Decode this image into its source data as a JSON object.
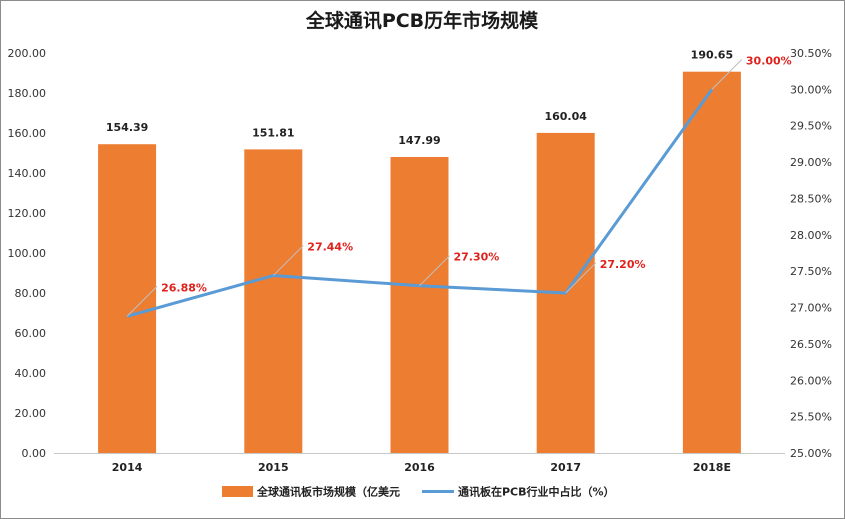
{
  "chart_data": {
    "type": "bar",
    "title": "全球通讯PCB历年市场规模",
    "categories": [
      "2014",
      "2015",
      "2016",
      "2017",
      "2018E"
    ],
    "series": [
      {
        "name": "全球通讯板市场规模（亿美元",
        "type": "bar",
        "axis": "left",
        "color": "#ed7d31",
        "values": [
          154.39,
          151.81,
          147.99,
          160.04,
          190.65
        ],
        "labels": [
          "154.39",
          "151.81",
          "147.99",
          "160.04",
          "190.65"
        ]
      },
      {
        "name": "通讯板在PCB行业中占比（%）",
        "type": "line",
        "axis": "right",
        "color": "#5b9bd5",
        "values": [
          26.88,
          27.44,
          27.3,
          27.2,
          30.0
        ],
        "labels": [
          "26.88%",
          "27.44%",
          "27.30%",
          "27.20%",
          "30.00%"
        ]
      }
    ],
    "y_left": {
      "range": [
        0,
        200
      ],
      "ticks": [
        "0.00",
        "20.00",
        "40.00",
        "60.00",
        "80.00",
        "100.00",
        "120.00",
        "140.00",
        "160.00",
        "180.00",
        "200.00"
      ]
    },
    "y_right": {
      "range": [
        25.0,
        30.5
      ],
      "ticks": [
        "25.00%",
        "25.50%",
        "26.00%",
        "26.50%",
        "27.00%",
        "27.50%",
        "28.00%",
        "28.50%",
        "29.00%",
        "29.50%",
        "30.00%",
        "30.50%"
      ]
    },
    "legend_position": "bottom",
    "grid": false
  }
}
